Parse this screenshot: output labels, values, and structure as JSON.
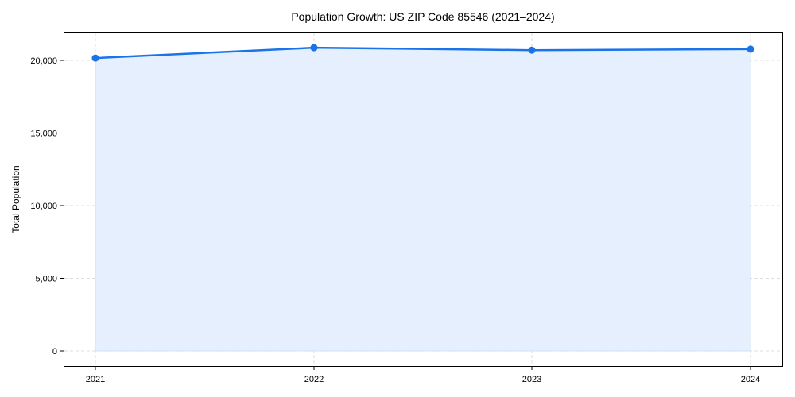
{
  "chart_data": {
    "type": "area",
    "title": "Population Growth: US ZIP Code 85546 (2021–2024)",
    "xlabel": "",
    "ylabel": "Total Population",
    "categories": [
      "2021",
      "2022",
      "2023",
      "2024"
    ],
    "series": [
      {
        "name": "Total Population",
        "values": [
          20160,
          20870,
          20700,
          20770
        ]
      }
    ],
    "ylim": [
      -1050,
      21900
    ],
    "yticks": [
      0,
      5000,
      10000,
      15000,
      20000
    ],
    "ytick_labels": [
      "0",
      "5,000",
      "10,000",
      "15,000",
      "20,000"
    ],
    "grid": true,
    "legend": null,
    "colors": {
      "line": "#1a73e8",
      "fill": "#e5effd",
      "grid": "#dddddd"
    }
  }
}
